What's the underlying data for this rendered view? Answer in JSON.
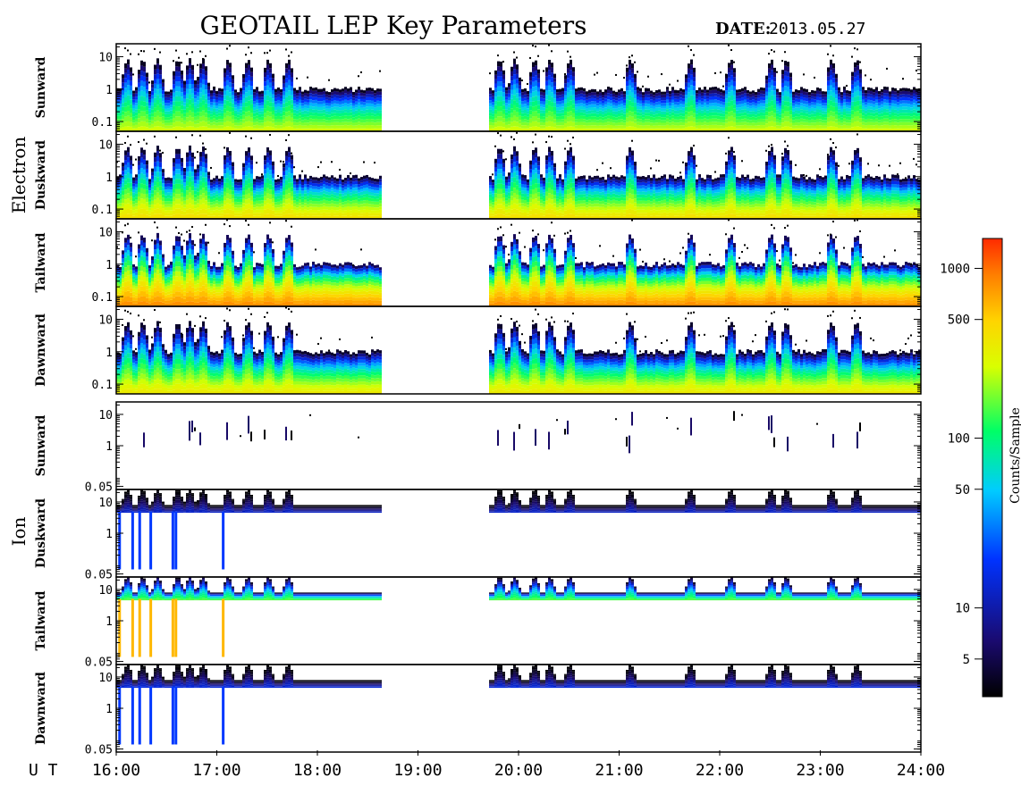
{
  "title": "GEOTAIL LEP Key Parameters",
  "date_label": "DATE:",
  "date_value": "2013.05.27",
  "x_axis_label": "U T",
  "groups": [
    {
      "name": "Electron",
      "panels": [
        "Sunward",
        "Duskward",
        "Tailward",
        "Dawnward"
      ]
    },
    {
      "name": "Ion",
      "panels": [
        "Sunward",
        "Duskward",
        "Tailward",
        "Dawnward"
      ]
    }
  ],
  "colorbar": {
    "label": "Counts/Sample",
    "tick_labels": [
      "1000",
      "500",
      "100",
      "50",
      "10",
      "5"
    ],
    "tick_values": [
      1000,
      500,
      100,
      50,
      10,
      5
    ],
    "range": [
      3,
      1500
    ],
    "scale": "log",
    "colors": [
      "#000000",
      "#1a0a6e",
      "#0033ff",
      "#00ccff",
      "#00ff66",
      "#d9ff00",
      "#ffd400",
      "#ff7f00",
      "#ff2a00"
    ]
  },
  "chart_data": {
    "type": "heatmap",
    "x_ticks": [
      "16:00",
      "17:00",
      "18:00",
      "19:00",
      "20:00",
      "21:00",
      "22:00",
      "23:00",
      "24:00"
    ],
    "x_tick_hours": [
      16,
      17,
      18,
      19,
      20,
      21,
      22,
      23,
      24
    ],
    "x_range_hours": [
      16,
      24
    ],
    "data_gap_hours": [
      18.62,
      19.7
    ],
    "y_scale": "log",
    "electron_y_ticks": [
      "10",
      "1",
      "0.1"
    ],
    "electron_y_values": [
      10,
      1,
      0.1
    ],
    "electron_y_range": [
      0.05,
      25
    ],
    "ion_y_ticks": [
      "10",
      "1",
      "0.05"
    ],
    "ion_y_values": [
      10,
      1,
      0.05
    ],
    "ion_y_range": [
      0.04,
      25
    ],
    "activity_hours": [
      16.1,
      16.25,
      16.4,
      16.6,
      16.72,
      16.85,
      17.1,
      17.3,
      17.5,
      17.7,
      19.8,
      19.95,
      20.15,
      20.3,
      20.5,
      21.1,
      21.7,
      22.1,
      22.5,
      22.65,
      23.1,
      23.35
    ],
    "panels": [
      {
        "group": "Electron",
        "direction": "Sunward",
        "background_level": "low",
        "background_counts": 250
      },
      {
        "group": "Electron",
        "direction": "Duskward",
        "background_level": "medium",
        "background_counts": 400
      },
      {
        "group": "Electron",
        "direction": "Tailward",
        "background_level": "high",
        "background_counts": 800
      },
      {
        "group": "Electron",
        "direction": "Dawnward",
        "background_level": "medium",
        "background_counts": 350
      },
      {
        "group": "Ion",
        "direction": "Sunward",
        "background_level": "sparse",
        "background_counts": 4
      },
      {
        "group": "Ion",
        "direction": "Duskward",
        "background_level": "low",
        "background_counts": 10
      },
      {
        "group": "Ion",
        "direction": "Tailward",
        "background_level": "high",
        "background_counts": 150
      },
      {
        "group": "Ion",
        "direction": "Dawnward",
        "background_level": "low",
        "background_counts": 12
      }
    ]
  }
}
